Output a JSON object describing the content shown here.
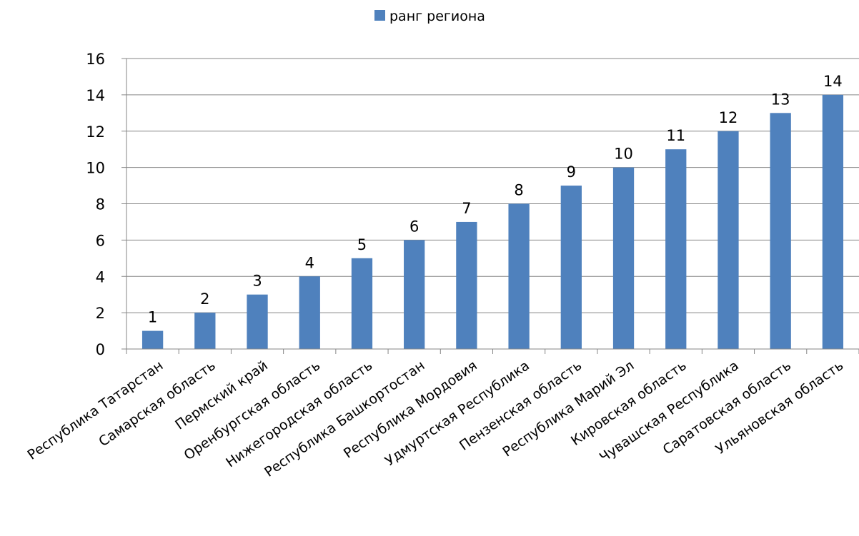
{
  "chart_data": {
    "type": "bar",
    "title": "",
    "xlabel": "",
    "ylabel": "",
    "ylim": [
      0,
      16
    ],
    "yticks": [
      0,
      2,
      4,
      6,
      8,
      10,
      12,
      14,
      16
    ],
    "grid": true,
    "legend_position": "top-center",
    "bar_color": "#4F81BD",
    "categories": [
      "Республика Татарстан",
      "Самарская область",
      "Пермский край",
      "Оренбургская область",
      "Нижегородская область",
      "Республика Башкортостан",
      "Республика Мордовия",
      "Удмуртская Республика",
      "Пензенская область",
      "Республика Марий Эл",
      "Кировская область",
      "Чувашская Республика",
      "Саратовская область",
      "Ульяновская область"
    ],
    "series": [
      {
        "name": "ранг региона",
        "values": [
          1,
          2,
          3,
          4,
          5,
          6,
          7,
          8,
          9,
          10,
          11,
          12,
          13,
          14
        ]
      }
    ]
  }
}
